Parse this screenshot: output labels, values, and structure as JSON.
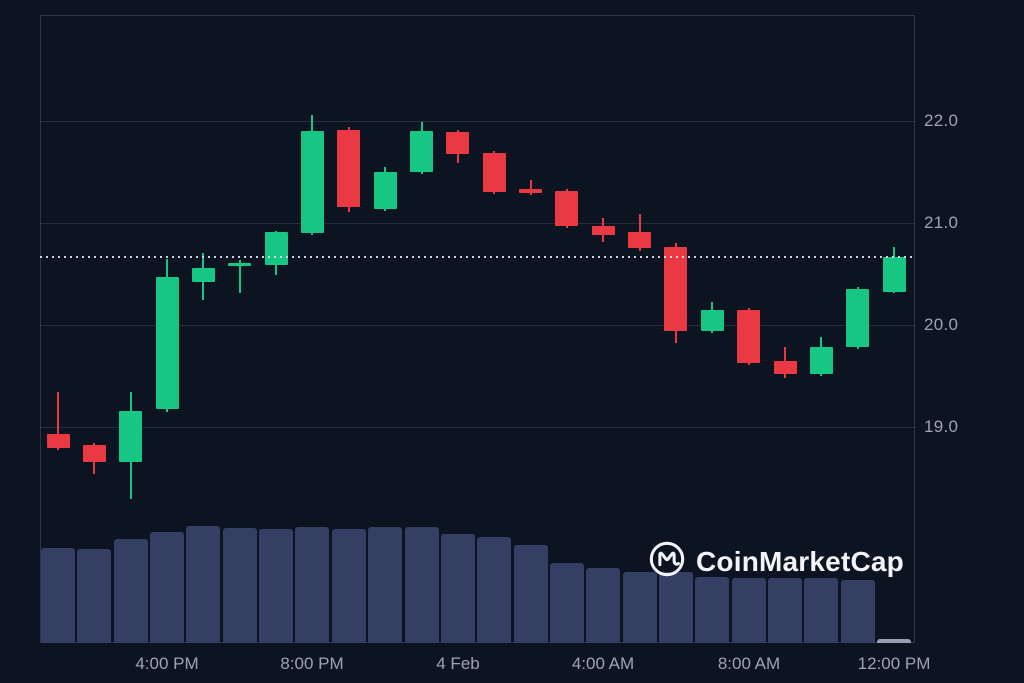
{
  "watermark": {
    "text": "CoinMarketCap"
  },
  "colors": {
    "background": "#0d1421",
    "candle_up": "#16c784",
    "candle_down": "#ea3943",
    "volume_bar": "#353e63",
    "volume_current": "#98a0b4",
    "grid": "rgba(170,182,204,0.16)",
    "axis_label": "#9ba3b6",
    "current_price_line": "#ccd3e2",
    "watermark_text": "#f2f4f9"
  },
  "chart_data": {
    "type": "candlestick",
    "title": "",
    "xlabel": "",
    "ylabel": "Price",
    "grid": "horizontal-only",
    "ylim": [
      16.88,
      23.04
    ],
    "y_ticks": [
      {
        "label": "22.0",
        "value": 22.0
      },
      {
        "label": "21.0",
        "value": 21.0
      },
      {
        "label": "20.0",
        "value": 20.0
      },
      {
        "label": "19.0",
        "value": 19.0
      }
    ],
    "x_tick_labels": [
      {
        "label": "4:00 PM",
        "candle_index": 3
      },
      {
        "label": "8:00 PM",
        "candle_index": 7
      },
      {
        "label": "4 Feb",
        "candle_index": 11
      },
      {
        "label": "4:00 AM",
        "candle_index": 15
      },
      {
        "label": "8:00 AM",
        "candle_index": 19
      },
      {
        "label": "12:00 PM",
        "candle_index": 23
      }
    ],
    "current_price": 20.67,
    "current_candle_index": 23,
    "candles": [
      {
        "time": "3 Feb 1:00 PM",
        "open": 18.93,
        "high": 19.34,
        "low": 18.77,
        "close": 18.79
      },
      {
        "time": "3 Feb 2:00 PM",
        "open": 18.82,
        "high": 18.84,
        "low": 18.54,
        "close": 18.65
      },
      {
        "time": "3 Feb 3:00 PM",
        "open": 18.66,
        "high": 19.34,
        "low": 18.29,
        "close": 19.16
      },
      {
        "time": "3 Feb 4:00 PM",
        "open": 19.18,
        "high": 20.65,
        "low": 19.15,
        "close": 20.47
      },
      {
        "time": "3 Feb 5:00 PM",
        "open": 20.42,
        "high": 20.71,
        "low": 20.25,
        "close": 20.56
      },
      {
        "time": "3 Feb 6:00 PM",
        "open": 20.58,
        "high": 20.64,
        "low": 20.32,
        "close": 20.61
      },
      {
        "time": "3 Feb 7:00 PM",
        "open": 20.59,
        "high": 20.92,
        "low": 20.49,
        "close": 20.91
      },
      {
        "time": "3 Feb 8:00 PM",
        "open": 20.9,
        "high": 22.06,
        "low": 20.88,
        "close": 21.9
      },
      {
        "time": "3 Feb 9:00 PM",
        "open": 21.91,
        "high": 21.94,
        "low": 21.11,
        "close": 21.15
      },
      {
        "time": "3 Feb 10:00 PM",
        "open": 21.14,
        "high": 21.55,
        "low": 21.12,
        "close": 21.5
      },
      {
        "time": "3 Feb 11:00 PM",
        "open": 21.5,
        "high": 21.99,
        "low": 21.48,
        "close": 21.9
      },
      {
        "time": "4 Feb 12:00 AM",
        "open": 21.89,
        "high": 21.91,
        "low": 21.59,
        "close": 21.67
      },
      {
        "time": "4 Feb 1:00 AM",
        "open": 21.69,
        "high": 21.71,
        "low": 21.29,
        "close": 21.31
      },
      {
        "time": "4 Feb 2:00 AM",
        "open": 21.33,
        "high": 21.42,
        "low": 21.27,
        "close": 21.29
      },
      {
        "time": "4 Feb 3:00 AM",
        "open": 21.31,
        "high": 21.33,
        "low": 20.95,
        "close": 20.97
      },
      {
        "time": "4 Feb 4:00 AM",
        "open": 20.97,
        "high": 21.05,
        "low": 20.81,
        "close": 20.88
      },
      {
        "time": "4 Feb 5:00 AM",
        "open": 20.91,
        "high": 21.09,
        "low": 20.73,
        "close": 20.75
      },
      {
        "time": "4 Feb 6:00 AM",
        "open": 20.76,
        "high": 20.8,
        "low": 19.82,
        "close": 19.94
      },
      {
        "time": "4 Feb 7:00 AM",
        "open": 19.94,
        "high": 20.22,
        "low": 19.92,
        "close": 20.15
      },
      {
        "time": "4 Feb 8:00 AM",
        "open": 20.15,
        "high": 20.17,
        "low": 19.61,
        "close": 19.63
      },
      {
        "time": "4 Feb 9:00 AM",
        "open": 19.65,
        "high": 19.78,
        "low": 19.48,
        "close": 19.52
      },
      {
        "time": "4 Feb 10:00 AM",
        "open": 19.52,
        "high": 19.88,
        "low": 19.5,
        "close": 19.78
      },
      {
        "time": "4 Feb 11:00 AM",
        "open": 19.78,
        "high": 20.37,
        "low": 19.76,
        "close": 20.35
      },
      {
        "time": "4 Feb 12:00 PM",
        "open": 20.33,
        "high": 20.76,
        "low": 20.31,
        "close": 20.67
      }
    ],
    "volume_relative": [
      95,
      94,
      104,
      111,
      117,
      115,
      114,
      116,
      114,
      116,
      116,
      109,
      106,
      98,
      80,
      75,
      71,
      71,
      66,
      65,
      65,
      65,
      63,
      4
    ]
  }
}
